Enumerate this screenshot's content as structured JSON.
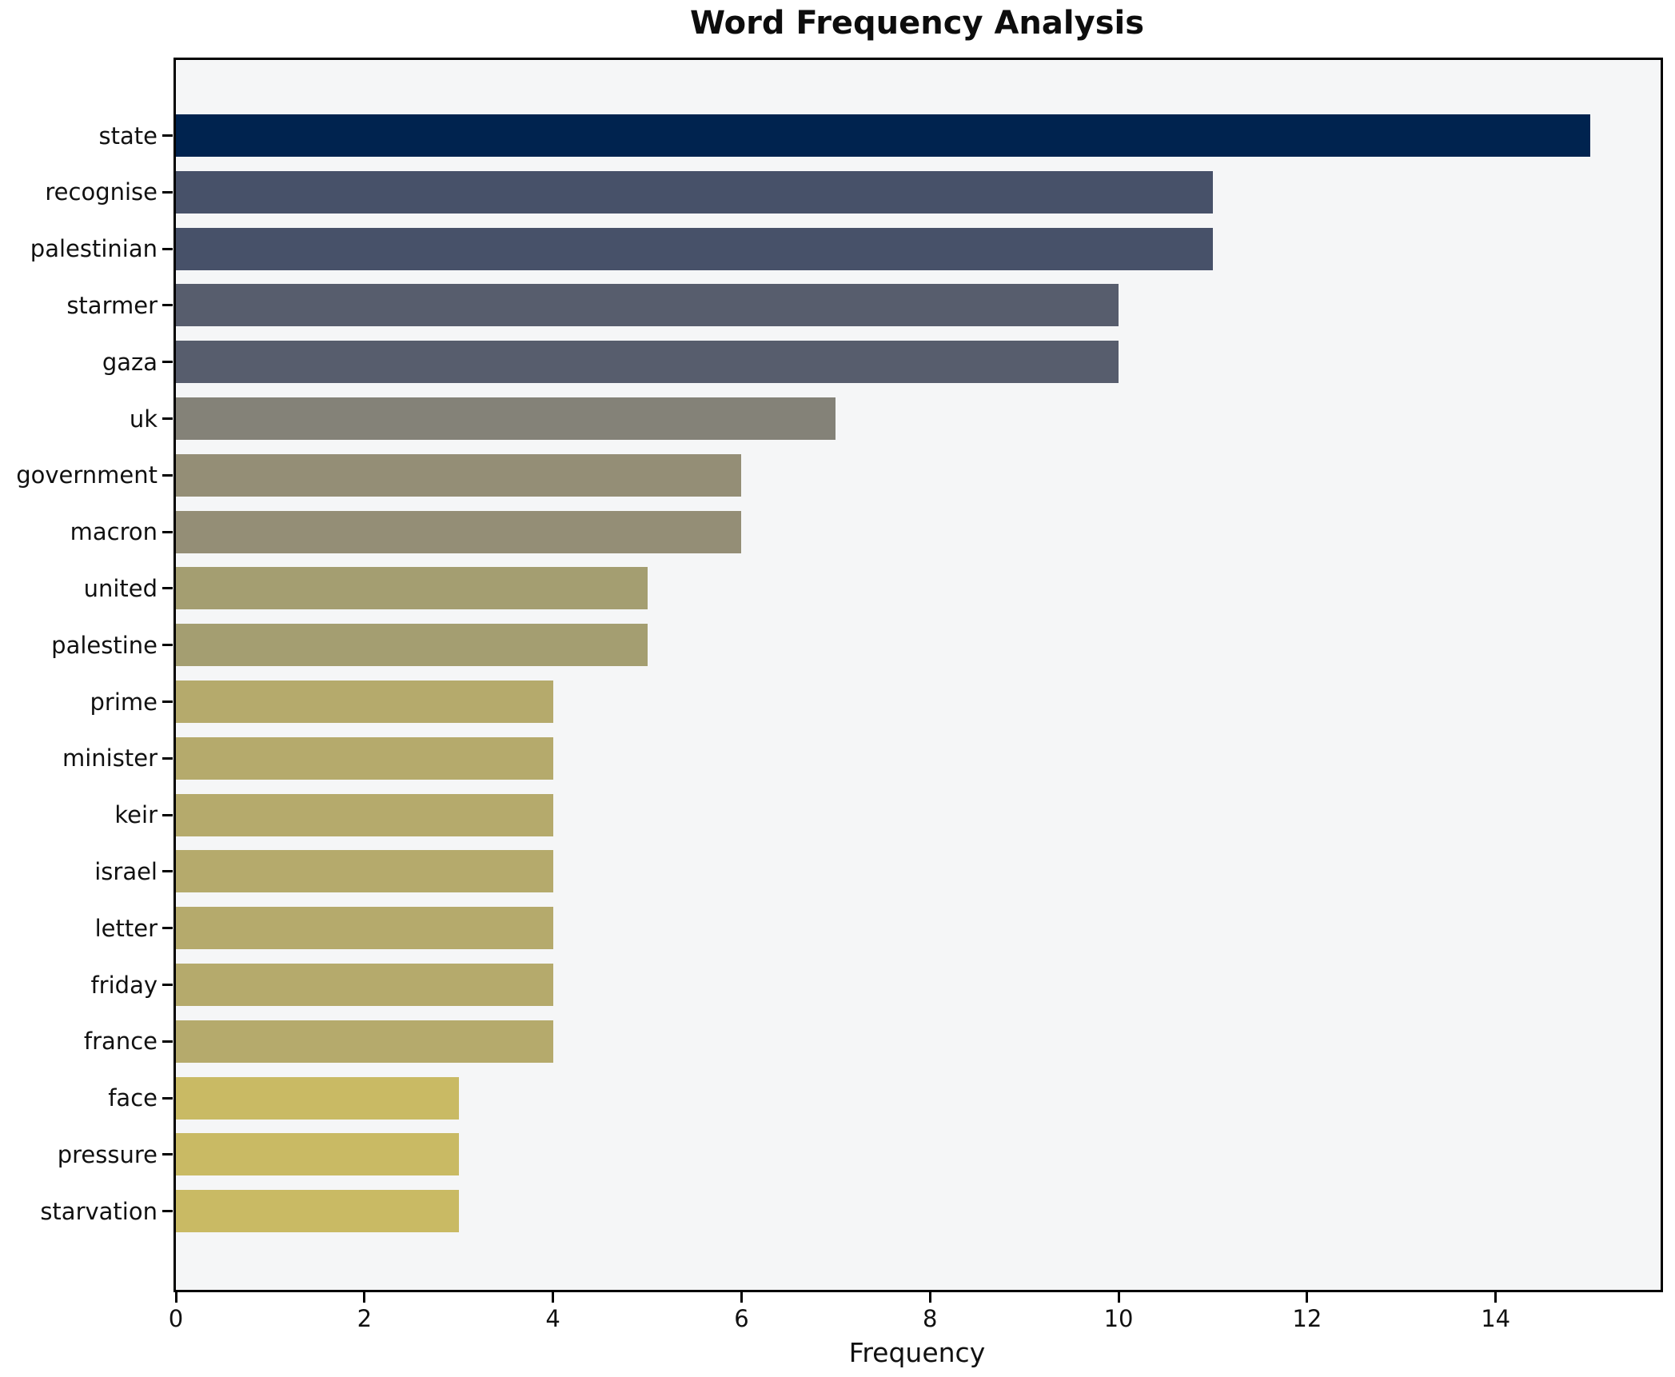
{
  "chart_data": {
    "type": "bar",
    "orientation": "horizontal",
    "title": "Word Frequency Analysis",
    "xlabel": "Frequency",
    "ylabel": "",
    "categories": [
      "state",
      "recognise",
      "palestinian",
      "starmer",
      "gaza",
      "uk",
      "government",
      "macron",
      "united",
      "palestine",
      "prime",
      "minister",
      "keir",
      "israel",
      "letter",
      "friday",
      "france",
      "face",
      "pressure",
      "starvation"
    ],
    "values": [
      15,
      11,
      11,
      10,
      10,
      7,
      6,
      6,
      5,
      5,
      4,
      4,
      4,
      4,
      4,
      4,
      4,
      3,
      3,
      3
    ],
    "bar_colors": [
      "#00234f",
      "#475169",
      "#475169",
      "#575d6d",
      "#575d6d",
      "#848278",
      "#948e76",
      "#948e76",
      "#a49e71",
      "#a49e71",
      "#b5aa6c",
      "#b5aa6c",
      "#b5aa6c",
      "#b5aa6c",
      "#b5aa6c",
      "#b5aa6c",
      "#b5aa6c",
      "#c9ba64",
      "#c9ba64",
      "#c9ba64"
    ],
    "x_ticks": [
      0,
      2,
      4,
      6,
      8,
      10,
      12,
      14
    ],
    "xlim": [
      0,
      15.75
    ],
    "grid": false,
    "legend": null,
    "plot_background": "#f5f6f7",
    "figure_background": "#ffffff",
    "border_color": "#000000",
    "text_color": "#111111"
  }
}
